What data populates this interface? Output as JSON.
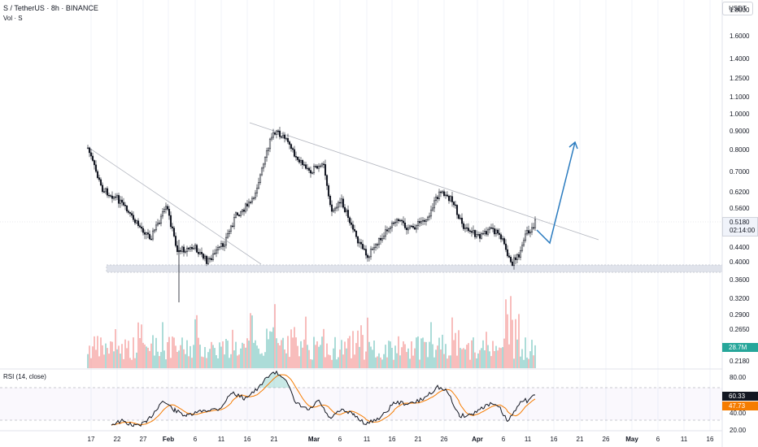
{
  "header": {
    "symbol_title": "S / TetherUS · 8h · BINANCE",
    "volume_label": "Vol · S",
    "currency": "USDT"
  },
  "price_axis": {
    "labels": [
      "1.8000",
      "1.6000",
      "1.4000",
      "1.2500",
      "1.1000",
      "1.0000",
      "0.9000",
      "0.8000",
      "0.7000",
      "0.6200",
      "0.5600",
      "0.4400",
      "0.4000",
      "0.3600",
      "0.3200",
      "0.2900",
      "0.2650",
      "0.2180"
    ],
    "current_price": "0.5180",
    "countdown": "02:14:00",
    "volume_value": "28.7M"
  },
  "rsi": {
    "title": "RSI (14, close)",
    "axis": [
      "80.00",
      "40.00",
      "20.00"
    ],
    "value": "60.33",
    "ma_value": "47.73",
    "upper_band": 70,
    "lower_band": 30
  },
  "time_axis": [
    {
      "label": "17",
      "bold": false
    },
    {
      "label": "22",
      "bold": false
    },
    {
      "label": "27",
      "bold": false
    },
    {
      "label": "Feb",
      "bold": true
    },
    {
      "label": "6",
      "bold": false
    },
    {
      "label": "11",
      "bold": false
    },
    {
      "label": "16",
      "bold": false
    },
    {
      "label": "21",
      "bold": false
    },
    {
      "label": "Mar",
      "bold": true
    },
    {
      "label": "6",
      "bold": false
    },
    {
      "label": "11",
      "bold": false
    },
    {
      "label": "16",
      "bold": false
    },
    {
      "label": "21",
      "bold": false
    },
    {
      "label": "26",
      "bold": false
    },
    {
      "label": "Apr",
      "bold": true
    },
    {
      "label": "6",
      "bold": false
    },
    {
      "label": "11",
      "bold": false
    },
    {
      "label": "16",
      "bold": false
    },
    {
      "label": "21",
      "bold": false
    },
    {
      "label": "26",
      "bold": false
    },
    {
      "label": "May",
      "bold": true
    },
    {
      "label": "6",
      "bold": false
    },
    {
      "label": "11",
      "bold": false
    },
    {
      "label": "16",
      "bold": false
    }
  ],
  "colors": {
    "up": "#26a69a",
    "down": "#ef5350",
    "candle": "#131722",
    "rsi_line": "#131722",
    "rsi_ma": "#f57c00",
    "projection": "#2962ff",
    "trendline": "#b2b5be",
    "support_zone": "#e0e3eb"
  },
  "chart_data": {
    "type": "candlestick",
    "symbol": "S / TetherUS",
    "interval": "8h",
    "exchange": "BINANCE",
    "price_scale": "log",
    "close_path": [
      [
        "Jan 17",
        0.75
      ],
      [
        "Jan 22",
        0.64
      ],
      [
        "Jan 27",
        0.55
      ],
      [
        "Feb 1",
        0.52
      ],
      [
        "Feb 3",
        0.41
      ],
      [
        "Feb 7",
        0.43
      ],
      [
        "Feb 11",
        0.4
      ],
      [
        "Feb 16",
        0.52
      ],
      [
        "Feb 19",
        0.75
      ],
      [
        "Feb 21",
        0.92
      ],
      [
        "Feb 24",
        0.8
      ],
      [
        "Mar 1",
        0.68
      ],
      [
        "Mar 5",
        0.52
      ],
      [
        "Mar 11",
        0.41
      ],
      [
        "Mar 16",
        0.48
      ],
      [
        "Mar 21",
        0.53
      ],
      [
        "Mar 26",
        0.61
      ],
      [
        "Apr 1",
        0.48
      ],
      [
        "Apr 5",
        0.47
      ],
      [
        "Apr 8",
        0.39
      ],
      [
        "Apr 11",
        0.5
      ],
      [
        "Apr 13",
        0.518
      ]
    ],
    "current_price": 0.518,
    "support_zone": [
      0.385,
      0.4
    ],
    "projection": {
      "dip_to": 0.45,
      "target": 0.85
    },
    "rsi": {
      "value": 60.33,
      "ma": 47.73
    },
    "volume": "28.7M"
  }
}
